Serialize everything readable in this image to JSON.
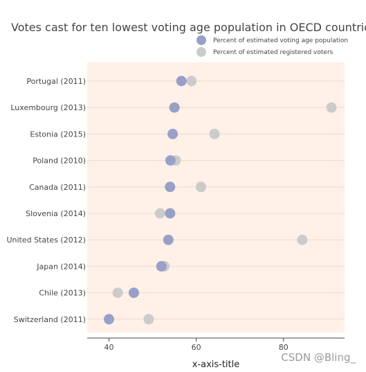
{
  "chart_data": {
    "type": "scatter",
    "title": "Votes cast for ten lowest voting age population in OECD countries",
    "xlabel": "x-axis-title",
    "ylabel": "",
    "xlim": [
      35,
      94
    ],
    "x_ticks": [
      40,
      60,
      80
    ],
    "categories": [
      "Portugal (2011)",
      "Luxembourg (2013)",
      "Estonia (2015)",
      "Poland (2010)",
      "Canada (2011)",
      "Slovenia (2014)",
      "United States (2012)",
      "Japan (2014)",
      "Chile (2013)",
      "Switzerland (2011)"
    ],
    "series": [
      {
        "name": "Percent of estimated voting age population",
        "color": "#98a0c8",
        "values": [
          56.6,
          55.0,
          54.6,
          54.1,
          54.0,
          54.0,
          53.6,
          52.0,
          45.7,
          40.0
        ]
      },
      {
        "name": "Percent of estimated registered voters",
        "color": "#cbcbcb",
        "values": [
          58.9,
          91.0,
          64.2,
          55.3,
          61.1,
          51.7,
          84.3,
          52.7,
          42.0,
          49.1
        ]
      }
    ],
    "grid": true,
    "legend_position": "top-right",
    "plot_background": "#fff0e8"
  },
  "watermark": "CSDN @Bling_"
}
